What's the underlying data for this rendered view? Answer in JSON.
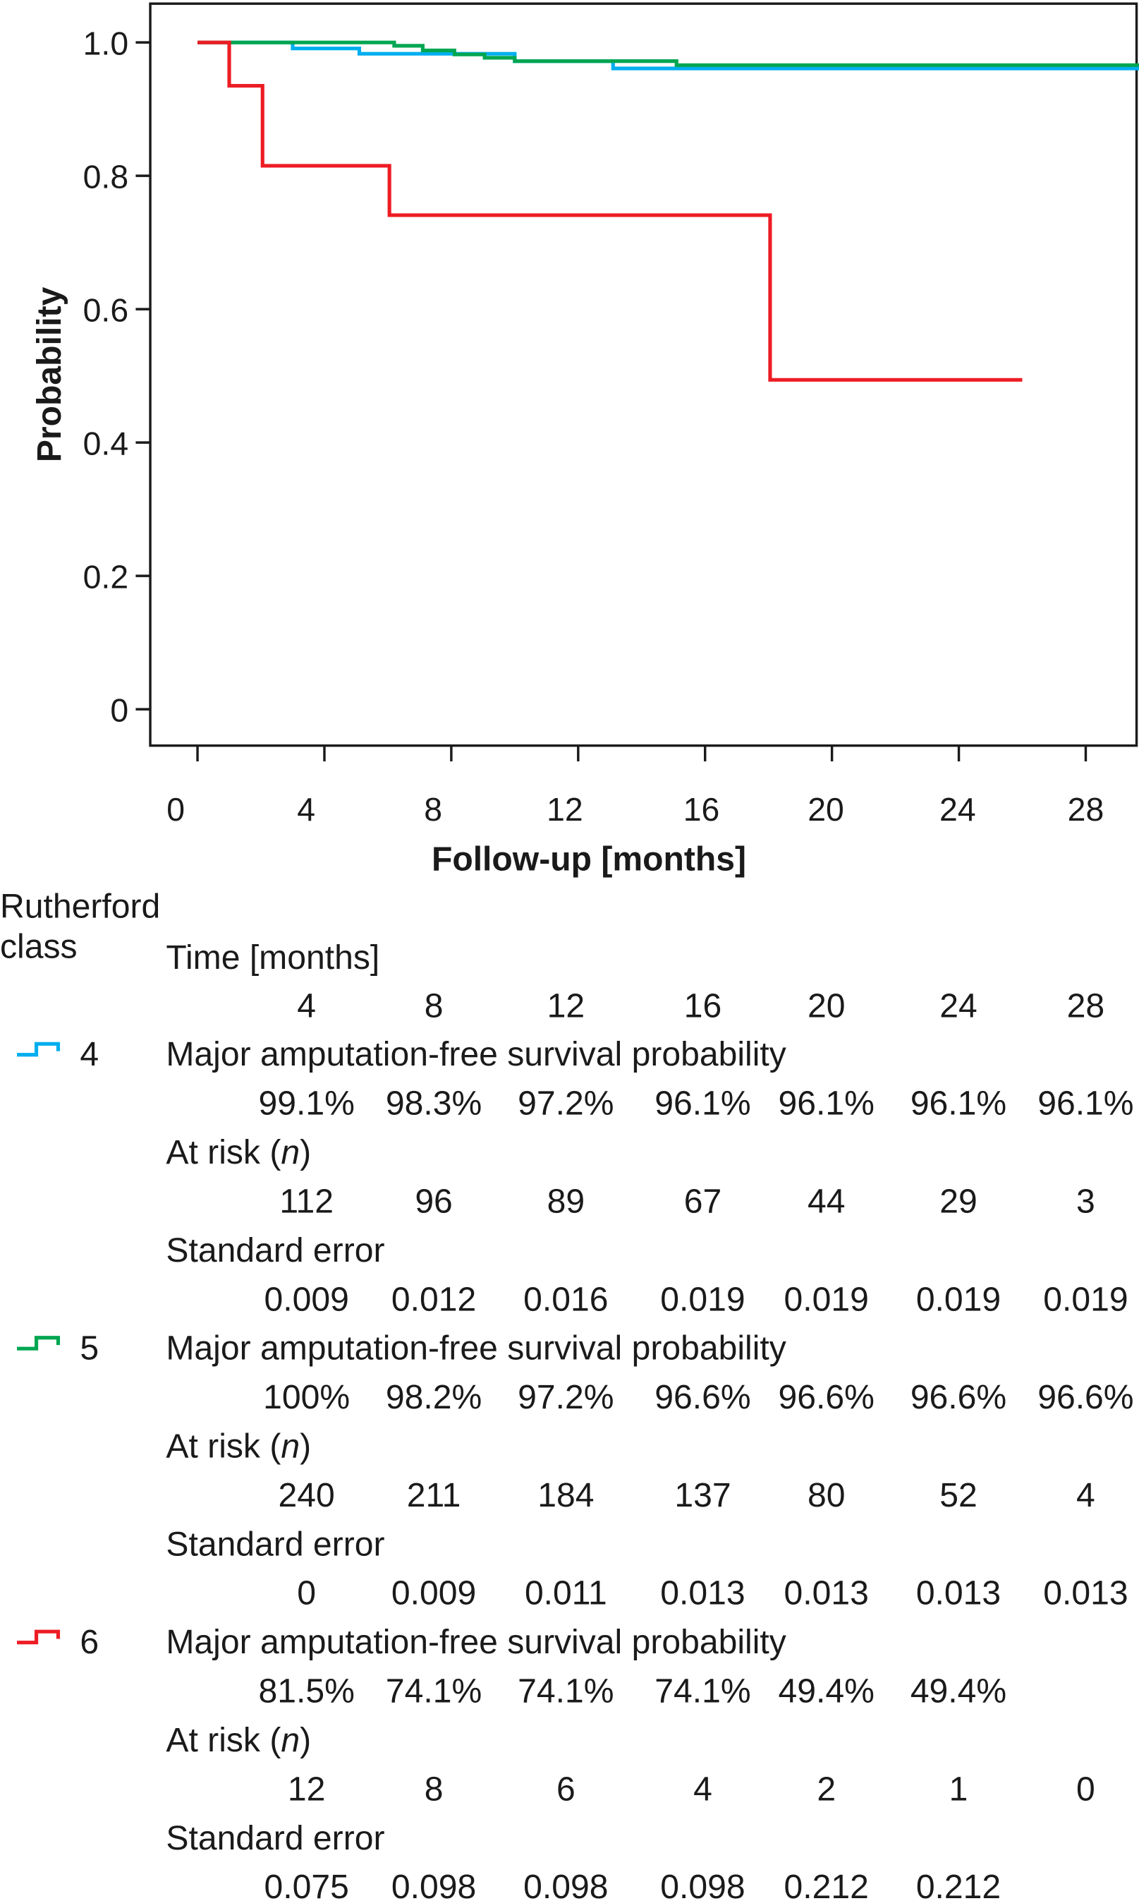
{
  "chart_data": {
    "type": "line",
    "subtype": "kaplan-meier step",
    "xlabel": "Follow-up [months]",
    "ylabel": "Probability",
    "xlim": [
      -1.5,
      29.7
    ],
    "ylim": [
      -0.055,
      1.06
    ],
    "xticks": [
      0,
      4,
      8,
      12,
      16,
      20,
      24,
      28
    ],
    "xtick_labels": [
      "0",
      "4",
      "8",
      "12",
      "16",
      "20",
      "24",
      "28"
    ],
    "yticks": [
      0,
      0.2,
      0.4,
      0.6,
      0.8,
      1.0
    ],
    "ytick_labels": [
      "0",
      "0.2",
      "0.4",
      "0.6",
      "0.8",
      "1.0"
    ],
    "grid": false,
    "series": [
      {
        "name": "4",
        "color": "#00aeef",
        "steps": [
          [
            0,
            1.0
          ],
          [
            3.0,
            0.991
          ],
          [
            5.1,
            0.983
          ],
          [
            10.0,
            0.972
          ],
          [
            13.1,
            0.961
          ],
          [
            29.7,
            0.961
          ]
        ]
      },
      {
        "name": "5",
        "color": "#00a651",
        "steps": [
          [
            0,
            1.0
          ],
          [
            6.2,
            0.995
          ],
          [
            7.1,
            0.988
          ],
          [
            8.1,
            0.982
          ],
          [
            9.05,
            0.977
          ],
          [
            10.0,
            0.972
          ],
          [
            15.1,
            0.966
          ],
          [
            29.7,
            0.966
          ]
        ]
      },
      {
        "name": "6",
        "color": "#ed1c24",
        "steps": [
          [
            0,
            1.0
          ],
          [
            1.0,
            0.935
          ],
          [
            2.05,
            0.815
          ],
          [
            6.05,
            0.741
          ],
          [
            18.05,
            0.494
          ],
          [
            26.0,
            0.494
          ]
        ]
      }
    ]
  },
  "table": {
    "group_header_line1": "Rutherford",
    "group_header_line2": "class",
    "time_label": "Time [months]",
    "times": [
      "4",
      "8",
      "12",
      "16",
      "20",
      "24",
      "28"
    ],
    "survival_label": "Major amputation-free survival probability",
    "at_risk_label_prefix": "At risk (",
    "at_risk_label_n": "n",
    "at_risk_label_suffix": ")",
    "se_label": "Standard error",
    "groups": [
      {
        "class": "4",
        "color": "#00aeef",
        "survival": [
          "99.1%",
          "98.3%",
          "97.2%",
          "96.1%",
          "96.1%",
          "96.1%",
          "96.1%"
        ],
        "at_risk": [
          "112",
          "96",
          "89",
          "67",
          "44",
          "29",
          "3"
        ],
        "se": [
          "0.009",
          "0.012",
          "0.016",
          "0.019",
          "0.019",
          "0.019",
          "0.019"
        ]
      },
      {
        "class": "5",
        "color": "#00a651",
        "survival": [
          "100%",
          "98.2%",
          "97.2%",
          "96.6%",
          "96.6%",
          "96.6%",
          "96.6%"
        ],
        "at_risk": [
          "240",
          "211",
          "184",
          "137",
          "80",
          "52",
          "4"
        ],
        "se": [
          "0",
          "0.009",
          "0.011",
          "0.013",
          "0.013",
          "0.013",
          "0.013"
        ]
      },
      {
        "class": "6",
        "color": "#ed1c24",
        "survival": [
          "81.5%",
          "74.1%",
          "74.1%",
          "74.1%",
          "49.4%",
          "49.4%"
        ],
        "at_risk": [
          "12",
          "8",
          "6",
          "4",
          "2",
          "1",
          "0"
        ],
        "se": [
          "0.075",
          "0.098",
          "0.098",
          "0.098",
          "0.212",
          "0.212"
        ]
      }
    ]
  }
}
